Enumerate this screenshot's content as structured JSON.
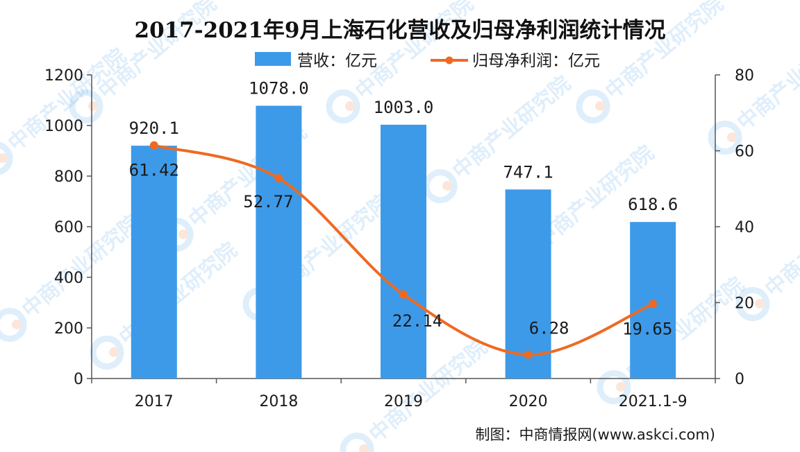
{
  "chart_data": {
    "type": "bar+line",
    "title": "2017-2021年9月上海石化营收及归母净利润统计情况",
    "categories": [
      "2017",
      "2018",
      "2019",
      "2020",
      "2021.1-9"
    ],
    "series": [
      {
        "name": "营收：亿元",
        "type": "bar",
        "axis": "left",
        "color": "#3d9ae8",
        "values": [
          920.1,
          1078.0,
          1003.0,
          747.1,
          618.6
        ],
        "labels": [
          "920.1",
          "1078.0",
          "1003.0",
          "747.1",
          "618.6"
        ]
      },
      {
        "name": "归母净利润：亿元",
        "type": "line",
        "axis": "right",
        "color": "#ee6a22",
        "values": [
          61.42,
          52.77,
          22.14,
          6.28,
          19.65
        ],
        "labels": [
          "61.42",
          "52.77",
          "22.14",
          "6.28",
          "19.65"
        ]
      }
    ],
    "left_axis": {
      "ylim": [
        0,
        1200
      ],
      "ticks": [
        "0",
        "200",
        "400",
        "600",
        "800",
        "1000",
        "1200"
      ]
    },
    "right_axis": {
      "ylim": [
        0,
        80
      ],
      "ticks": [
        "0",
        "20",
        "40",
        "60",
        "80"
      ]
    },
    "legend_position": "top-center",
    "grid": false
  },
  "source": "制图：中商情报网(www.askci.com)",
  "watermark": "中商产业研究院"
}
